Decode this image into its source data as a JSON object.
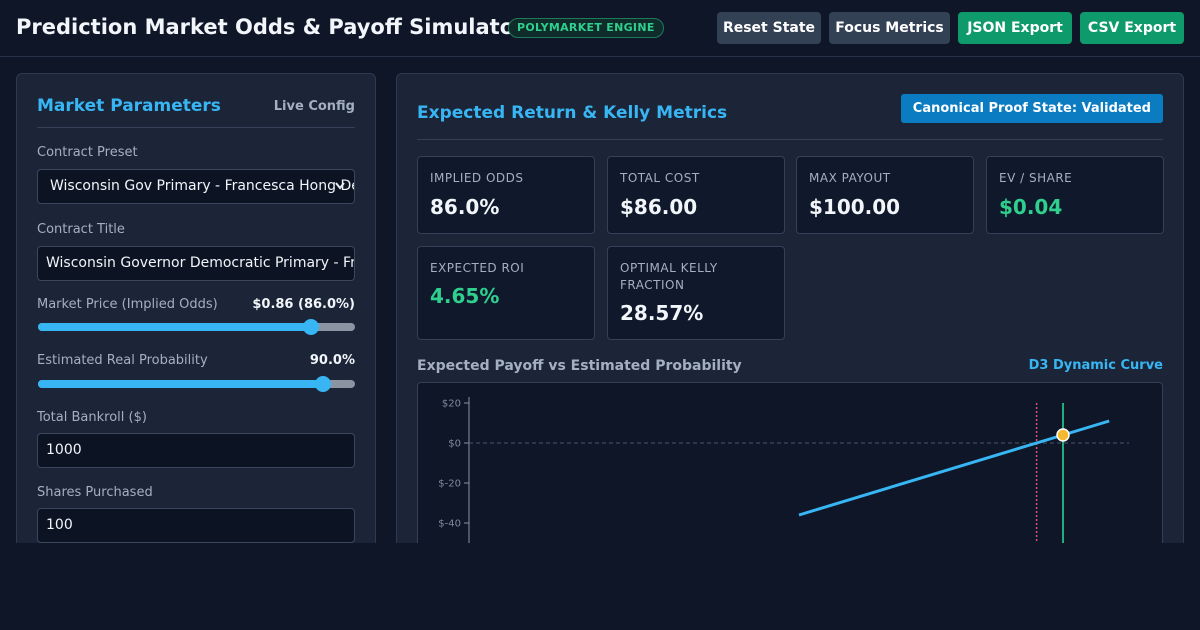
{
  "header": {
    "title": "Prediction Market Odds & Payoff Simulator",
    "badge": "POLYMARKET ENGINE",
    "buttons": {
      "reset": "Reset State",
      "focus": "Focus Metrics",
      "json": "JSON Export",
      "csv": "CSV Export"
    }
  },
  "left_panel": {
    "title": "Market Parameters",
    "tag": "Live Config",
    "contract_preset": {
      "label": "Contract Preset",
      "value": "Wisconsin Gov Primary - Francesca Hong Dem"
    },
    "contract_title": {
      "label": "Contract Title",
      "value": "Wisconsin Governor Democratic Primary - Francesca Hong"
    },
    "market_price": {
      "label": "Market Price (Implied Odds)",
      "value": "$0.86 (86.0%)",
      "level": 0.86
    },
    "real_probability": {
      "label": "Estimated Real Probability",
      "value": "90.0%",
      "level": 0.9
    },
    "bankroll": {
      "label": "Total Bankroll ($)",
      "value": "1000"
    },
    "shares": {
      "label": "Shares Purchased",
      "value": "100"
    }
  },
  "right_panel": {
    "title": "Expected Return & Kelly Metrics",
    "badge": "Canonical Proof State: Validated",
    "metrics": [
      {
        "label": "IMPLIED ODDS",
        "value": "86.0%"
      },
      {
        "label": "TOTAL COST",
        "value": "$86.00"
      },
      {
        "label": "MAX PAYOUT",
        "value": "$100.00"
      },
      {
        "label": "EV / SHARE",
        "value": "$0.04"
      },
      {
        "label": "EXPECTED ROI",
        "value": "4.65%"
      },
      {
        "label": "OPTIMAL KELLY FRACTION",
        "value": "28.57%"
      }
    ],
    "chart_title": "Expected Payoff vs Estimated Probability",
    "chart_tag": "D3 Dynamic Curve"
  },
  "colors": {
    "accent": "#38b6f4",
    "positive": "#2fcf8e",
    "market_line": "#e0507a",
    "real_line": "#1fae7c",
    "point": "#f5b82e"
  },
  "chart_data": {
    "type": "line",
    "title": "Expected Payoff vs Estimated Probability",
    "xlabel": "",
    "ylabel": "",
    "y_ticks": [
      "$20",
      "$0",
      "$-20",
      "$-40"
    ],
    "ylim": [
      -60,
      20
    ],
    "xlim": [
      0,
      1
    ],
    "series": [
      {
        "x": [
          0.5,
          0.86,
          0.9,
          0.97
        ],
        "y": [
          -36,
          0,
          4,
          11
        ]
      }
    ],
    "market_price": 0.86,
    "real_probability": 0.9,
    "highlight_point": {
      "x": 0.9,
      "y": 4
    },
    "zero_line": true
  }
}
